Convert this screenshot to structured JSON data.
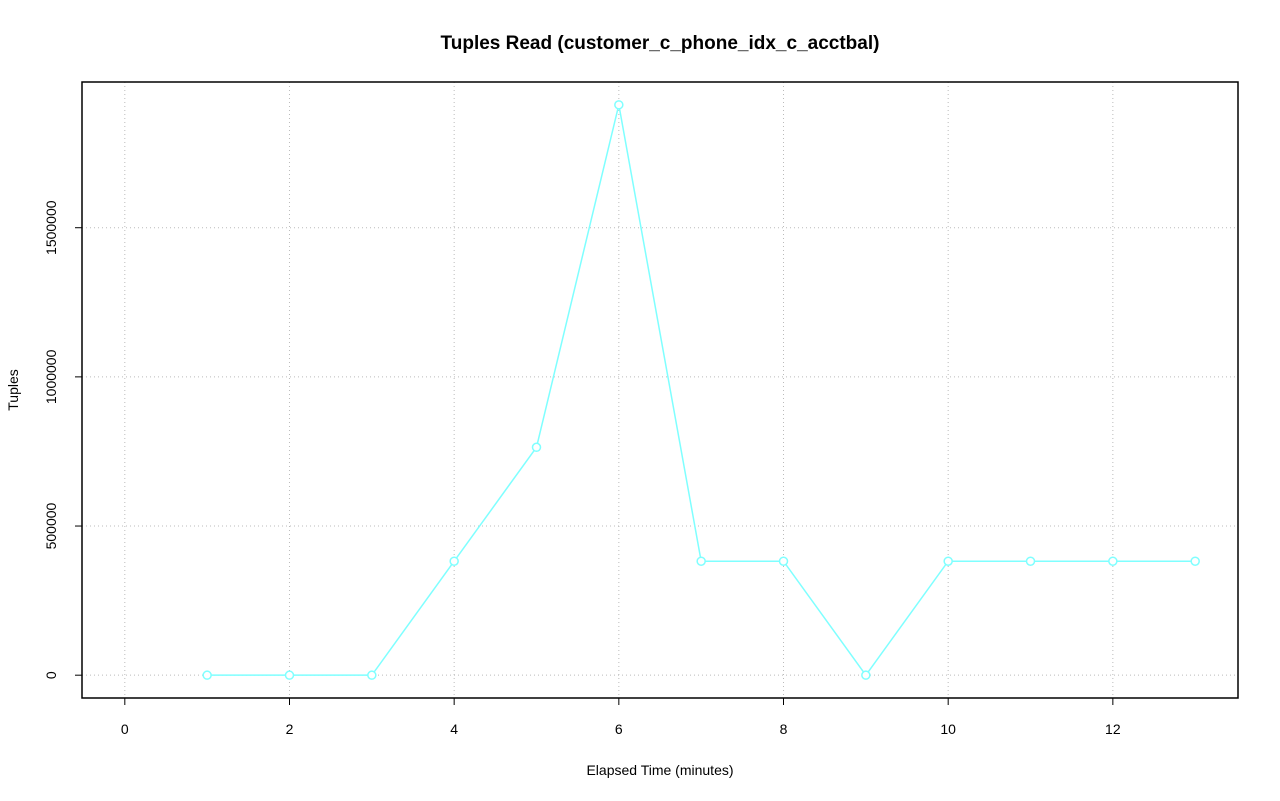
{
  "chart_data": {
    "type": "line",
    "title": "Tuples Read (customer_c_phone_idx_c_acctbal)",
    "x_label": "Elapsed Time (minutes)",
    "y_label": "Tuples",
    "x": [
      1,
      2,
      3,
      4,
      5,
      6,
      7,
      8,
      9,
      10,
      11,
      12,
      13
    ],
    "series": [
      {
        "name": "customer_c_phone_idx_c_acctbal",
        "color": "#7fffff",
        "values": [
          0,
          0,
          0,
          382000,
          764000,
          1912000,
          382000,
          382000,
          0,
          382000,
          382000,
          382000,
          382000
        ]
      }
    ],
    "xlim": [
      -0.52,
      13.52
    ],
    "xticks": [
      0,
      2,
      4,
      6,
      8,
      10,
      12
    ],
    "ylim": [
      -76480,
      1988480
    ],
    "yticks": [
      0,
      500000,
      1000000,
      1500000
    ],
    "grid": true
  }
}
